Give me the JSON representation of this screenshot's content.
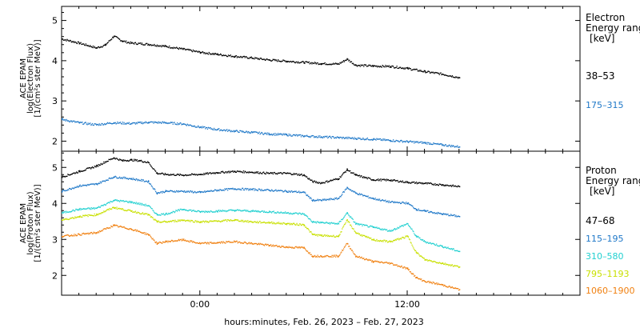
{
  "chart_data": [
    {
      "type": "scatter",
      "panel": "electron",
      "ylabel_lines": [
        "ACE EPAM",
        "log(Electron Flux)",
        "[1/(cm²s ster MeV)]"
      ],
      "legend_title_lines": [
        "Electron",
        "Energy ranges",
        "[keV]"
      ],
      "legend_placement": "right",
      "xlim": [
        -8,
        22
      ],
      "ylim": [
        1.75,
        5.35
      ],
      "yticks": [
        2,
        3,
        4,
        5
      ],
      "grid": false,
      "series": [
        {
          "name": "38–53",
          "color": "#000000",
          "points": [
            [
              -8.0,
              4.55
            ],
            [
              -7.0,
              4.45
            ],
            [
              -6.0,
              4.33
            ],
            [
              -5.5,
              4.4
            ],
            [
              -5.0,
              4.62
            ],
            [
              -4.5,
              4.5
            ],
            [
              -4.0,
              4.45
            ],
            [
              -3.0,
              4.42
            ],
            [
              -2.0,
              4.37
            ],
            [
              -1.0,
              4.3
            ],
            [
              0.0,
              4.22
            ],
            [
              1.0,
              4.17
            ],
            [
              2.0,
              4.12
            ],
            [
              3.0,
              4.08
            ],
            [
              4.0,
              4.03
            ],
            [
              5.0,
              4.0
            ],
            [
              6.0,
              3.97
            ],
            [
              7.0,
              3.94
            ],
            [
              8.0,
              3.93
            ],
            [
              8.5,
              4.05
            ],
            [
              9.0,
              3.9
            ],
            [
              10.0,
              3.88
            ],
            [
              11.0,
              3.87
            ],
            [
              12.0,
              3.82
            ],
            [
              13.0,
              3.74
            ],
            [
              14.0,
              3.68
            ],
            [
              15.0,
              3.59
            ]
          ]
        },
        {
          "name": "175–315",
          "color": "#1f78c8",
          "points": [
            [
              -8.0,
              2.55
            ],
            [
              -7.0,
              2.47
            ],
            [
              -6.0,
              2.42
            ],
            [
              -5.0,
              2.47
            ],
            [
              -4.0,
              2.45
            ],
            [
              -3.0,
              2.48
            ],
            [
              -2.0,
              2.47
            ],
            [
              -1.0,
              2.44
            ],
            [
              0.0,
              2.36
            ],
            [
              1.0,
              2.3
            ],
            [
              2.0,
              2.26
            ],
            [
              3.0,
              2.23
            ],
            [
              4.0,
              2.19
            ],
            [
              5.0,
              2.17
            ],
            [
              6.0,
              2.14
            ],
            [
              7.0,
              2.12
            ],
            [
              8.0,
              2.1
            ],
            [
              9.0,
              2.08
            ],
            [
              10.0,
              2.06
            ],
            [
              11.0,
              2.03
            ],
            [
              12.0,
              2.0
            ],
            [
              13.0,
              1.97
            ],
            [
              14.0,
              1.92
            ],
            [
              15.0,
              1.87
            ]
          ]
        }
      ]
    },
    {
      "type": "scatter",
      "panel": "proton",
      "ylabel_lines": [
        "ACE EPAM",
        "log(Proton Flux)",
        "[1/(cm²s ster MeV)]"
      ],
      "legend_title_lines": [
        "Proton",
        "Energy ranges",
        "[keV]"
      ],
      "legend_placement": "right",
      "xlim": [
        -8,
        22
      ],
      "ylim": [
        1.45,
        5.45
      ],
      "yticks": [
        2,
        3,
        4,
        5
      ],
      "grid": false,
      "xticks": [
        0,
        12
      ],
      "xtick_labels": [
        "0:00",
        "12:00"
      ],
      "xlabel": "hours:minutes, Feb. 26, 2023 – Feb. 27, 2023",
      "series": [
        {
          "name": "47–68",
          "color": "#000000",
          "points": [
            [
              -8.0,
              4.75
            ],
            [
              -7.0,
              4.9
            ],
            [
              -6.0,
              5.05
            ],
            [
              -5.0,
              5.28
            ],
            [
              -4.5,
              5.2
            ],
            [
              -4.0,
              5.22
            ],
            [
              -3.5,
              5.2
            ],
            [
              -3.0,
              5.15
            ],
            [
              -2.5,
              4.85
            ],
            [
              -2.0,
              4.82
            ],
            [
              -1.0,
              4.8
            ],
            [
              0.0,
              4.82
            ],
            [
              1.0,
              4.87
            ],
            [
              2.0,
              4.9
            ],
            [
              3.0,
              4.88
            ],
            [
              4.0,
              4.85
            ],
            [
              5.0,
              4.85
            ],
            [
              6.0,
              4.8
            ],
            [
              6.5,
              4.62
            ],
            [
              7.0,
              4.58
            ],
            [
              8.0,
              4.7
            ],
            [
              8.5,
              4.95
            ],
            [
              9.0,
              4.8
            ],
            [
              10.0,
              4.67
            ],
            [
              11.0,
              4.66
            ],
            [
              12.0,
              4.6
            ],
            [
              13.0,
              4.57
            ],
            [
              14.0,
              4.53
            ],
            [
              15.0,
              4.48
            ]
          ]
        },
        {
          "name": "115–195",
          "color": "#1f78c8",
          "points": [
            [
              -8.0,
              4.35
            ],
            [
              -7.0,
              4.5
            ],
            [
              -6.0,
              4.55
            ],
            [
              -5.0,
              4.75
            ],
            [
              -4.0,
              4.7
            ],
            [
              -3.0,
              4.62
            ],
            [
              -2.5,
              4.3
            ],
            [
              -2.0,
              4.35
            ],
            [
              -1.0,
              4.35
            ],
            [
              0.0,
              4.32
            ],
            [
              1.0,
              4.38
            ],
            [
              2.0,
              4.42
            ],
            [
              3.0,
              4.4
            ],
            [
              4.0,
              4.38
            ],
            [
              5.0,
              4.35
            ],
            [
              6.0,
              4.32
            ],
            [
              6.5,
              4.1
            ],
            [
              7.0,
              4.1
            ],
            [
              8.0,
              4.15
            ],
            [
              8.5,
              4.45
            ],
            [
              9.0,
              4.3
            ],
            [
              10.0,
              4.15
            ],
            [
              11.0,
              4.05
            ],
            [
              12.0,
              4.02
            ],
            [
              12.5,
              3.85
            ],
            [
              13.0,
              3.8
            ],
            [
              14.0,
              3.72
            ],
            [
              15.0,
              3.65
            ]
          ]
        },
        {
          "name": "310–580",
          "color": "#22d0d0",
          "points": [
            [
              -8.0,
              3.75
            ],
            [
              -7.0,
              3.85
            ],
            [
              -6.0,
              3.88
            ],
            [
              -5.0,
              4.1
            ],
            [
              -4.0,
              4.05
            ],
            [
              -3.0,
              3.95
            ],
            [
              -2.5,
              3.7
            ],
            [
              -2.0,
              3.72
            ],
            [
              -1.0,
              3.85
            ],
            [
              0.0,
              3.78
            ],
            [
              1.0,
              3.8
            ],
            [
              2.0,
              3.82
            ],
            [
              3.0,
              3.8
            ],
            [
              4.0,
              3.78
            ],
            [
              5.0,
              3.75
            ],
            [
              6.0,
              3.72
            ],
            [
              6.5,
              3.5
            ],
            [
              7.0,
              3.48
            ],
            [
              8.0,
              3.45
            ],
            [
              8.5,
              3.75
            ],
            [
              9.0,
              3.45
            ],
            [
              10.0,
              3.35
            ],
            [
              11.0,
              3.25
            ],
            [
              12.0,
              3.45
            ],
            [
              12.5,
              3.1
            ],
            [
              13.0,
              2.95
            ],
            [
              14.0,
              2.82
            ],
            [
              15.0,
              2.68
            ]
          ]
        },
        {
          "name": "795–1193",
          "color": "#c8e000",
          "points": [
            [
              -8.0,
              3.55
            ],
            [
              -7.0,
              3.65
            ],
            [
              -6.0,
              3.7
            ],
            [
              -5.0,
              3.9
            ],
            [
              -4.0,
              3.8
            ],
            [
              -3.0,
              3.7
            ],
            [
              -2.5,
              3.5
            ],
            [
              -2.0,
              3.5
            ],
            [
              -1.0,
              3.55
            ],
            [
              0.0,
              3.5
            ],
            [
              1.0,
              3.52
            ],
            [
              2.0,
              3.55
            ],
            [
              3.0,
              3.5
            ],
            [
              4.0,
              3.48
            ],
            [
              5.0,
              3.45
            ],
            [
              6.0,
              3.42
            ],
            [
              6.5,
              3.15
            ],
            [
              7.0,
              3.12
            ],
            [
              8.0,
              3.1
            ],
            [
              8.5,
              3.55
            ],
            [
              9.0,
              3.2
            ],
            [
              10.0,
              3.0
            ],
            [
              11.0,
              2.95
            ],
            [
              12.0,
              3.1
            ],
            [
              12.5,
              2.65
            ],
            [
              13.0,
              2.45
            ],
            [
              14.0,
              2.35
            ],
            [
              15.0,
              2.25
            ]
          ]
        },
        {
          "name": "1060–1900",
          "color": "#f08010",
          "points": [
            [
              -8.0,
              3.1
            ],
            [
              -7.0,
              3.15
            ],
            [
              -6.0,
              3.2
            ],
            [
              -5.0,
              3.4
            ],
            [
              -4.0,
              3.3
            ],
            [
              -3.0,
              3.15
            ],
            [
              -2.5,
              2.9
            ],
            [
              -2.0,
              2.95
            ],
            [
              -1.0,
              3.0
            ],
            [
              0.0,
              2.9
            ],
            [
              1.0,
              2.92
            ],
            [
              2.0,
              2.95
            ],
            [
              3.0,
              2.9
            ],
            [
              4.0,
              2.85
            ],
            [
              5.0,
              2.8
            ],
            [
              6.0,
              2.78
            ],
            [
              6.5,
              2.55
            ],
            [
              7.0,
              2.55
            ],
            [
              8.0,
              2.55
            ],
            [
              8.5,
              2.9
            ],
            [
              9.0,
              2.55
            ],
            [
              10.0,
              2.4
            ],
            [
              11.0,
              2.35
            ],
            [
              12.0,
              2.2
            ],
            [
              12.5,
              1.95
            ],
            [
              13.0,
              1.85
            ],
            [
              14.0,
              1.75
            ],
            [
              15.0,
              1.62
            ]
          ]
        }
      ]
    }
  ]
}
